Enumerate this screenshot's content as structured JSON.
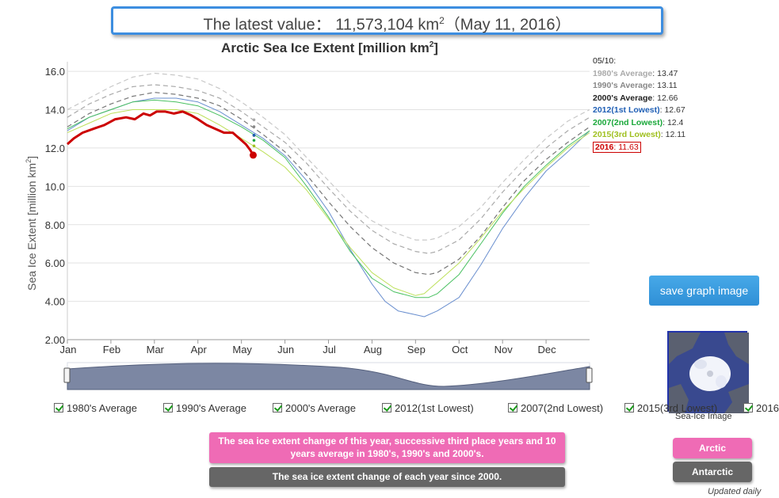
{
  "header": {
    "prefix": "The latest value：",
    "value": "11,573,104 km",
    "unit_sup": "2",
    "date": "（May 11, 2016）"
  },
  "chart_data": {
    "type": "line",
    "title": "Arctic Sea Ice Extent [million km",
    "title_sup": "2",
    "title_end": "]",
    "ylabel": "Sea Ice Extent [million km",
    "ylabel_sup": "2",
    "ylabel_end": "]",
    "ylim": [
      2.0,
      16.5
    ],
    "yticks": [
      "2.00",
      "4.00",
      "6.00",
      "8.00",
      "10.0",
      "12.0",
      "14.0",
      "16.0"
    ],
    "ytick_values": [
      2,
      4,
      6,
      8,
      10,
      12,
      14,
      16
    ],
    "xlim": [
      0,
      12
    ],
    "months": [
      "Jan",
      "Feb",
      "Mar",
      "Apr",
      "May",
      "Jun",
      "Jul",
      "Aug",
      "Sep",
      "Oct",
      "Nov",
      "Dec"
    ],
    "x_month_positions": [
      0,
      1,
      2,
      3,
      4,
      5,
      6,
      7,
      8,
      9,
      10,
      11
    ],
    "grid": "horizontal",
    "series": [
      {
        "name": "1980's Average",
        "color": "#c8c8c8",
        "dash": "6,4",
        "width": 1.2,
        "x": [
          0,
          0.5,
          1,
          1.5,
          2,
          2.5,
          3,
          3.5,
          4,
          4.5,
          5,
          5.5,
          6,
          6.5,
          7,
          7.5,
          8,
          8.3,
          8.5,
          9,
          9.5,
          10,
          10.5,
          11,
          11.5,
          12
        ],
        "y": [
          14.0,
          14.6,
          15.2,
          15.7,
          15.9,
          15.8,
          15.6,
          15.1,
          14.4,
          13.6,
          12.7,
          11.5,
          10.3,
          9.1,
          8.2,
          7.6,
          7.2,
          7.2,
          7.3,
          7.9,
          8.9,
          10.2,
          11.4,
          12.5,
          13.4,
          14.0
        ]
      },
      {
        "name": "1990's Average",
        "color": "#aaaaaa",
        "dash": "6,4",
        "width": 1.2,
        "x": [
          0,
          0.5,
          1,
          1.5,
          2,
          2.5,
          3,
          3.5,
          4,
          4.5,
          5,
          5.5,
          6,
          6.5,
          7,
          7.5,
          8,
          8.3,
          8.5,
          9,
          9.5,
          10,
          10.5,
          11,
          11.5,
          12
        ],
        "y": [
          13.6,
          14.3,
          14.8,
          15.2,
          15.3,
          15.2,
          15.0,
          14.6,
          13.9,
          13.1,
          12.3,
          11.2,
          9.9,
          8.7,
          7.7,
          7.0,
          6.6,
          6.5,
          6.6,
          7.2,
          8.3,
          9.7,
          10.9,
          12.0,
          12.9,
          13.6
        ]
      },
      {
        "name": "2000's Average",
        "color": "#777777",
        "dash": "6,4",
        "width": 1.2,
        "x": [
          0,
          0.5,
          1,
          1.5,
          2,
          2.5,
          3,
          3.5,
          4,
          4.5,
          5,
          5.5,
          6,
          6.5,
          7,
          7.5,
          8,
          8.3,
          8.5,
          9,
          9.5,
          10,
          10.5,
          11,
          11.5,
          12
        ],
        "y": [
          13.1,
          13.8,
          14.3,
          14.7,
          14.9,
          14.8,
          14.6,
          14.2,
          13.5,
          12.7,
          11.8,
          10.6,
          9.2,
          7.9,
          6.8,
          6.0,
          5.5,
          5.4,
          5.5,
          6.2,
          7.4,
          8.9,
          10.3,
          11.4,
          12.3,
          13.1
        ]
      },
      {
        "name": "2012(1st Lowest)",
        "color": "#6a8fcf",
        "dash": "",
        "width": 1.0,
        "x": [
          0,
          0.5,
          1,
          1.5,
          2,
          2.5,
          3,
          3.5,
          4,
          4.5,
          5,
          5.5,
          6,
          6.5,
          7,
          7.3,
          7.6,
          8,
          8.2,
          8.5,
          9,
          9.5,
          10,
          10.5,
          11,
          11.5,
          12
        ],
        "y": [
          12.9,
          13.6,
          14.0,
          14.4,
          14.6,
          14.6,
          14.4,
          13.9,
          13.2,
          12.5,
          11.6,
          10.3,
          8.7,
          6.7,
          4.9,
          4.0,
          3.5,
          3.3,
          3.2,
          3.5,
          4.2,
          5.9,
          7.8,
          9.4,
          10.8,
          11.8,
          12.9
        ]
      },
      {
        "name": "2007(2nd Lowest)",
        "color": "#48c060",
        "dash": "",
        "width": 1.0,
        "x": [
          0,
          0.5,
          1,
          1.5,
          2,
          2.5,
          3,
          3.5,
          4,
          4.5,
          5,
          5.5,
          6,
          6.5,
          7,
          7.5,
          8,
          8.3,
          8.5,
          9,
          9.5,
          10,
          10.5,
          11,
          11.5,
          12
        ],
        "y": [
          13.0,
          13.6,
          14.0,
          14.4,
          14.5,
          14.4,
          14.2,
          13.7,
          13.1,
          12.4,
          11.5,
          10.0,
          8.4,
          6.6,
          5.2,
          4.5,
          4.2,
          4.2,
          4.4,
          5.4,
          7.0,
          8.6,
          10.0,
          11.1,
          12.1,
          12.9
        ]
      },
      {
        "name": "2015(3rd Lowest)",
        "color": "#bde05a",
        "dash": "",
        "width": 1.0,
        "x": [
          0,
          0.5,
          1,
          1.5,
          2,
          2.5,
          3,
          3.5,
          4,
          4.5,
          5,
          5.5,
          6,
          6.5,
          7,
          7.5,
          8,
          8.2,
          8.5,
          9,
          9.5,
          10,
          10.5,
          11,
          11.5,
          12
        ],
        "y": [
          12.8,
          13.3,
          13.8,
          14.0,
          14.0,
          14.0,
          13.8,
          13.2,
          12.5,
          11.8,
          11.0,
          9.8,
          8.3,
          6.8,
          5.5,
          4.7,
          4.3,
          4.4,
          5.0,
          6.0,
          7.3,
          8.7,
          9.9,
          11.0,
          12.0,
          12.8
        ]
      },
      {
        "name": "2016",
        "color": "#cc0000",
        "dash": "",
        "width": 3.0,
        "x": [
          0,
          0.15,
          0.35,
          0.6,
          0.85,
          1.1,
          1.35,
          1.55,
          1.75,
          1.9,
          2.05,
          2.25,
          2.45,
          2.65,
          2.85,
          3.0,
          3.2,
          3.4,
          3.6,
          3.8,
          3.95,
          4.1,
          4.2,
          4.27
        ],
        "y": [
          12.2,
          12.5,
          12.8,
          13.0,
          13.2,
          13.5,
          13.6,
          13.5,
          13.8,
          13.7,
          13.9,
          13.9,
          13.8,
          13.9,
          13.7,
          13.5,
          13.2,
          13.0,
          12.8,
          12.8,
          12.5,
          12.2,
          11.9,
          11.63
        ]
      }
    ],
    "may10_values": [
      {
        "name": "1980's Average",
        "value": 13.47,
        "color": "#aaaaaa"
      },
      {
        "name": "1990's Average",
        "value": 13.11,
        "color": "#888888"
      },
      {
        "name": "2000's Average",
        "value": 12.66,
        "color": "#444444"
      },
      {
        "name": "2012(1st Lowest)",
        "value": 12.67,
        "color": "#1f5fb5"
      },
      {
        "name": "2007(2nd Lowest)",
        "value": 12.4,
        "color": "#1aa83a"
      },
      {
        "name": "2015(3rd Lowest)",
        "value": 12.11,
        "color": "#a0c020"
      },
      {
        "name": "2016",
        "value": 11.63,
        "color": "#cc0000"
      }
    ]
  },
  "legend_panel": {
    "date": "05/10:",
    "items": [
      {
        "label": "1980's Average",
        "value": ": 13.47",
        "color": "#aaaaaa"
      },
      {
        "label": "1990's Average",
        "value": ": 13.11",
        "color": "#888888"
      },
      {
        "label": "2000's Average",
        "value": ": 12.66",
        "color": "#222222"
      },
      {
        "label": "2012(1st Lowest)",
        "value": ": 12.67",
        "color": "#1f5fb5"
      },
      {
        "label": "2007(2nd Lowest)",
        "value": ": 12.4",
        "color": "#1aa83a"
      },
      {
        "label": "2015(3rd Lowest)",
        "value": ": 12.11",
        "color": "#a0c020"
      }
    ],
    "highlight": {
      "label": "2016",
      "value": ": 11.63",
      "color": "#cc0000"
    }
  },
  "buttons": {
    "save": "save graph image",
    "pink": "The sea ice extent change of this year, successive third place years and 10 years average in 1980's, 1990's and 2000's.",
    "gray": "The sea ice extent change of each year since 2000.",
    "arctic": "Arctic",
    "antarctic": "Antarctic"
  },
  "thumbnail": {
    "caption": "Sea-Ice Image"
  },
  "checkboxes": [
    {
      "label": "1980's Average",
      "checked": true
    },
    {
      "label": "1990's Average",
      "checked": true
    },
    {
      "label": "2000's Average",
      "checked": true
    },
    {
      "label": "2012(1st Lowest)",
      "checked": true
    },
    {
      "label": "2007(2nd Lowest)",
      "checked": true
    },
    {
      "label": "2015(3rd Lowest)",
      "checked": true
    },
    {
      "label": "2016",
      "checked": true
    }
  ],
  "footer": {
    "updated": "Updated daily"
  }
}
